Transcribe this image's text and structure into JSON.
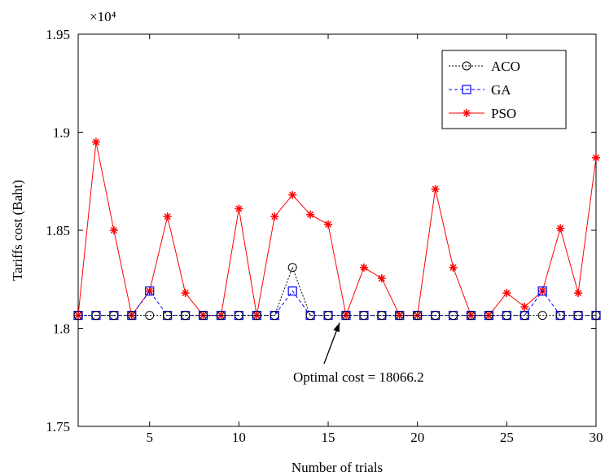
{
  "chart_data": {
    "type": "line",
    "title": "",
    "xlabel": "Number of trials",
    "ylabel": "Tariffs cost (Baht)",
    "y_multiplier_label": "×10⁴",
    "xlim": [
      1,
      30
    ],
    "ylim": [
      1.75,
      1.95
    ],
    "x_ticks": [
      5,
      10,
      15,
      20,
      25,
      30
    ],
    "x_tick_labels": [
      "5",
      "10",
      "15",
      "20",
      "25",
      "30"
    ],
    "y_ticks": [
      1.75,
      1.8,
      1.85,
      1.9,
      1.95
    ],
    "y_tick_labels": [
      "1.75",
      "1.8",
      "1.85",
      "1.9",
      "1.95"
    ],
    "grid": false,
    "legend_position": "top-right",
    "x": [
      1,
      2,
      3,
      4,
      5,
      6,
      7,
      8,
      9,
      10,
      11,
      12,
      13,
      14,
      15,
      16,
      17,
      18,
      19,
      20,
      21,
      22,
      23,
      24,
      25,
      26,
      27,
      28,
      29,
      30
    ],
    "series": [
      {
        "name": "ACO",
        "color": "#000000",
        "marker": "circle",
        "line_style": "dotted",
        "values": [
          1.8066,
          1.8066,
          1.8066,
          1.8066,
          1.8066,
          1.8066,
          1.8066,
          1.8066,
          1.8066,
          1.8066,
          1.8066,
          1.8066,
          1.831,
          1.8066,
          1.8066,
          1.8066,
          1.8066,
          1.8066,
          1.8066,
          1.8066,
          1.8066,
          1.8066,
          1.8066,
          1.8066,
          1.8066,
          1.8066,
          1.8066,
          1.8066,
          1.8066,
          1.8066
        ]
      },
      {
        "name": "GA",
        "color": "#0000ff",
        "marker": "square",
        "line_style": "dashed",
        "values": [
          1.8066,
          1.8066,
          1.8066,
          1.8066,
          1.819,
          1.8066,
          1.8066,
          1.8066,
          1.8066,
          1.8066,
          1.8066,
          1.8066,
          1.819,
          1.8066,
          1.8066,
          1.8066,
          1.8066,
          1.8066,
          1.8066,
          1.8066,
          1.8066,
          1.8066,
          1.8066,
          1.8066,
          1.8066,
          1.8066,
          1.819,
          1.8066,
          1.8066,
          1.8066
        ]
      },
      {
        "name": "PSO",
        "color": "#ff0000",
        "marker": "star",
        "line_style": "solid",
        "values": [
          1.8066,
          1.895,
          1.85,
          1.8066,
          1.819,
          1.857,
          1.818,
          1.8066,
          1.8066,
          1.861,
          1.8066,
          1.857,
          1.868,
          1.858,
          1.853,
          1.8066,
          1.831,
          1.8255,
          1.8066,
          1.8066,
          1.871,
          1.831,
          1.8066,
          1.8066,
          1.818,
          1.811,
          1.819,
          1.851,
          1.818,
          1.887
        ]
      }
    ],
    "annotations": [
      {
        "text": "Optimal cost = 18066.2",
        "arrow_to": {
          "x": 16,
          "y": 1.8066
        }
      }
    ]
  }
}
